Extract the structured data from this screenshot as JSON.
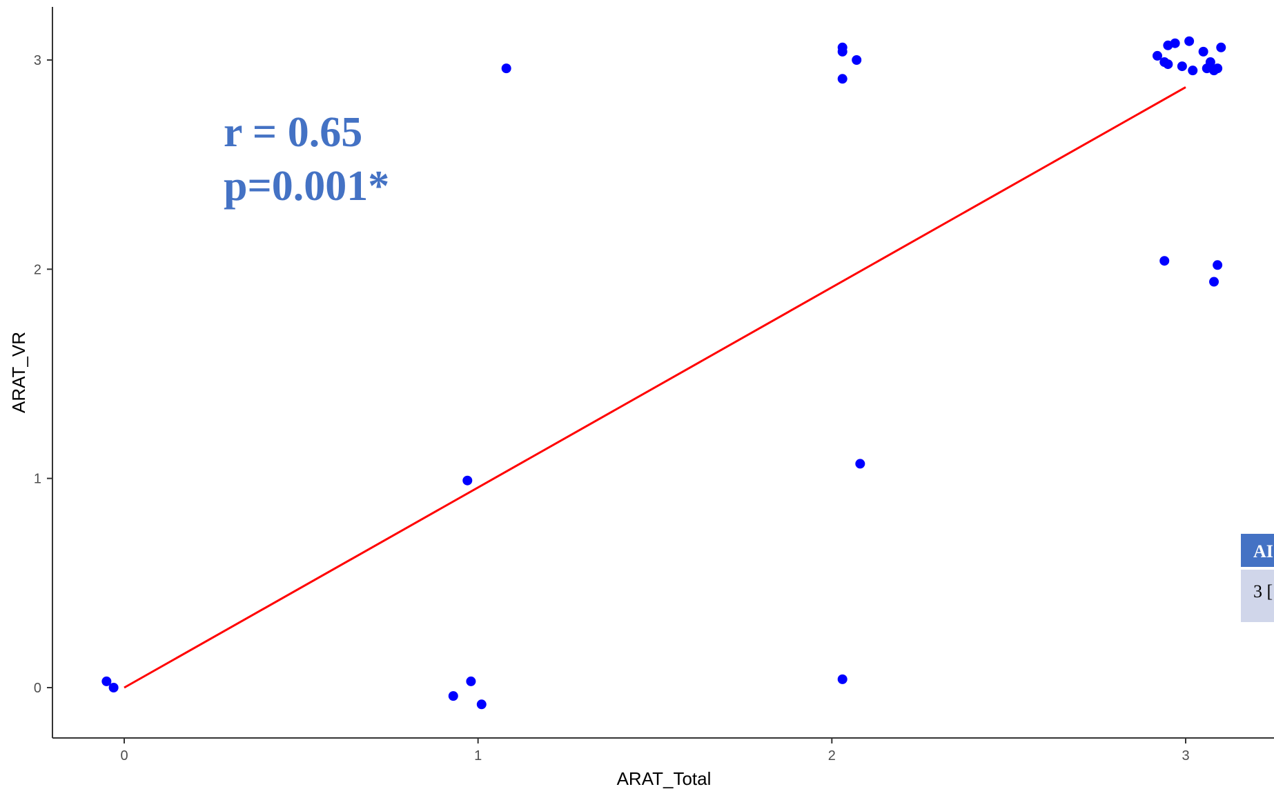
{
  "chart_data": {
    "type": "scatter",
    "title": "",
    "xlabel": "ARAT_Total",
    "ylabel": "ARAT_VR",
    "xlim": [
      -0.2,
      3.25
    ],
    "ylim": [
      -0.24,
      3.25
    ],
    "grid": false,
    "x_ticks": [
      0,
      1,
      2,
      3
    ],
    "y_ticks": [
      0,
      1,
      2,
      3
    ],
    "x_tick_labels": [
      "0",
      "1",
      "2",
      "3"
    ],
    "y_tick_labels": [
      "0",
      "1",
      "2",
      "3"
    ],
    "point_color": "#0000ff",
    "points": [
      {
        "x": -0.05,
        "y": 0.03
      },
      {
        "x": -0.03,
        "y": 0.0
      },
      {
        "x": 0.93,
        "y": -0.04
      },
      {
        "x": 0.98,
        "y": 0.03
      },
      {
        "x": 1.01,
        "y": -0.08
      },
      {
        "x": 0.97,
        "y": 0.99
      },
      {
        "x": 1.08,
        "y": 2.96
      },
      {
        "x": 2.03,
        "y": 0.04
      },
      {
        "x": 2.08,
        "y": 1.07
      },
      {
        "x": 2.03,
        "y": 2.91
      },
      {
        "x": 2.03,
        "y": 3.06
      },
      {
        "x": 2.03,
        "y": 3.04
      },
      {
        "x": 2.07,
        "y": 3.0
      },
      {
        "x": 2.92,
        "y": 3.02
      },
      {
        "x": 2.94,
        "y": 2.99
      },
      {
        "x": 2.95,
        "y": 2.98
      },
      {
        "x": 2.95,
        "y": 3.07
      },
      {
        "x": 2.97,
        "y": 3.08
      },
      {
        "x": 2.99,
        "y": 2.97
      },
      {
        "x": 3.01,
        "y": 3.09
      },
      {
        "x": 3.02,
        "y": 2.95
      },
      {
        "x": 3.05,
        "y": 3.04
      },
      {
        "x": 3.06,
        "y": 2.96
      },
      {
        "x": 3.07,
        "y": 2.99
      },
      {
        "x": 3.08,
        "y": 2.95
      },
      {
        "x": 3.09,
        "y": 2.96
      },
      {
        "x": 3.1,
        "y": 3.06
      },
      {
        "x": 2.94,
        "y": 2.04
      },
      {
        "x": 3.09,
        "y": 2.02
      },
      {
        "x": 3.08,
        "y": 1.94
      }
    ],
    "fit_line": {
      "color": "#ff0000",
      "x": [
        0,
        3
      ],
      "y": [
        0.0,
        2.87
      ]
    },
    "annotations": [
      {
        "text": "r = 0.65",
        "color": "#4472c4"
      },
      {
        "text": "p=0.001*",
        "color": "#4472c4"
      }
    ]
  },
  "overlay_table": {
    "header_text": "AI",
    "cell_text": "3 [",
    "header_color": "#4472c4",
    "cell_color": "#d0d6ea"
  }
}
